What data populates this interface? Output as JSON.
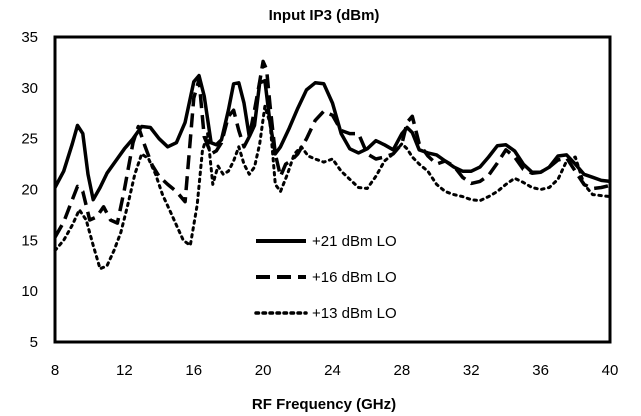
{
  "chart_data": {
    "type": "line",
    "title": "Input IP3 (dBm)",
    "xlabel": "RF Frequency (GHz)",
    "ylabel": "",
    "xlim": [
      8,
      40
    ],
    "ylim": [
      5,
      35
    ],
    "xticks": [
      8,
      12,
      16,
      20,
      24,
      28,
      32,
      36,
      40
    ],
    "yticks": [
      5,
      10,
      15,
      20,
      25,
      30,
      35
    ],
    "grid": false,
    "legend_position": "center",
    "series": [
      {
        "name": "+21 dBm LO",
        "style": "solid",
        "x": [
          8,
          8.5,
          9,
          9.3,
          9.6,
          9.9,
          10.2,
          10.6,
          11,
          11.5,
          12,
          12.5,
          13,
          13.5,
          14,
          14.5,
          15,
          15.5,
          16,
          16.3,
          16.6,
          17,
          17.3,
          17.6,
          18,
          18.3,
          18.6,
          18.9,
          19.2,
          19.5,
          19.8,
          20.1,
          20.4,
          20.7,
          21,
          21.5,
          22,
          22.5,
          23,
          23.5,
          24,
          24.5,
          25,
          25.5,
          26,
          26.5,
          27,
          27.5,
          28,
          28.3,
          28.6,
          29,
          29.5,
          30,
          30.5,
          31,
          31.5,
          32,
          32.5,
          33,
          33.5,
          34,
          34.5,
          35,
          35.5,
          36,
          36.5,
          37,
          37.5,
          38,
          38.5,
          39,
          39.5,
          40
        ],
        "values": [
          20.2,
          21.8,
          24.5,
          26.3,
          25.5,
          21.5,
          19,
          20.2,
          21.6,
          22.8,
          24,
          25,
          26.2,
          26.1,
          25,
          24.2,
          24.6,
          26.6,
          30.6,
          31.2,
          29.2,
          24.6,
          24.4,
          24.9,
          27.8,
          30.4,
          30.5,
          28.5,
          25.2,
          26.3,
          30.5,
          30.7,
          26.5,
          23.5,
          24.2,
          26,
          28,
          29.8,
          30.5,
          30.4,
          28.5,
          25.5,
          24,
          23.6,
          24,
          24.8,
          24.4,
          23.9,
          25.5,
          26.1,
          25.6,
          23.9,
          23.6,
          23.4,
          22.8,
          22.2,
          21.8,
          21.8,
          22.2,
          23.2,
          24.3,
          24.4,
          23.8,
          22.5,
          21.7,
          21.7,
          22.2,
          23.3,
          23.4,
          22.5,
          21.5,
          21.2,
          20.9,
          20.8
        ]
      },
      {
        "name": "+16 dBm LO",
        "style": "dashed",
        "x": [
          8,
          8.5,
          9,
          9.3,
          9.6,
          10,
          10.4,
          10.8,
          11.2,
          11.6,
          12,
          12.5,
          12.8,
          13.2,
          13.6,
          14,
          14.5,
          15,
          15.5,
          16,
          16.3,
          16.6,
          17,
          17.3,
          17.6,
          18,
          18.3,
          18.6,
          18.9,
          19.2,
          19.5,
          19.8,
          20,
          20.2,
          20.4,
          20.7,
          21,
          21.3,
          21.6,
          22,
          22.5,
          23,
          23.5,
          24,
          24.5,
          25,
          25.5,
          26,
          26.5,
          27,
          27.5,
          28,
          28.3,
          28.6,
          29,
          29.5,
          30,
          30.5,
          31,
          31.5,
          32,
          32.5,
          33,
          33.5,
          34,
          34.5,
          35,
          35.5,
          36,
          36.5,
          37,
          37.5,
          38,
          38.5,
          39,
          39.5,
          40
        ],
        "values": [
          15.3,
          16.8,
          19,
          20.3,
          19.8,
          17,
          17.3,
          18.3,
          17,
          16.7,
          20,
          24.6,
          26.2,
          24.2,
          22.4,
          21.3,
          20.5,
          19.8,
          18.8,
          29,
          30.8,
          25.2,
          23.5,
          23.8,
          24.6,
          27.2,
          27.8,
          25.8,
          24.2,
          25.2,
          27.8,
          30.6,
          32.6,
          31.8,
          28.2,
          23.5,
          21.3,
          22.5,
          22.8,
          23.5,
          25,
          26.8,
          27.7,
          27.3,
          25.8,
          25.5,
          25.5,
          23.5,
          23,
          23.2,
          23.5,
          24.5,
          26.6,
          27.2,
          24.5,
          23.3,
          22.5,
          22.8,
          22.3,
          21.2,
          20.6,
          20.8,
          21.4,
          22.6,
          23.9,
          23.2,
          22,
          21.6,
          21.7,
          22.2,
          22.9,
          23.1,
          21.8,
          20.5,
          20.1,
          20.2,
          20.4
        ]
      },
      {
        "name": "+13 dBm LO",
        "style": "dotted",
        "x": [
          8,
          8.5,
          9,
          9.4,
          9.8,
          10.2,
          10.6,
          11,
          11.4,
          11.8,
          12.2,
          12.6,
          13,
          13.4,
          13.8,
          14.2,
          14.6,
          15,
          15.4,
          15.8,
          16.2,
          16.5,
          16.8,
          17.1,
          17.4,
          17.7,
          18,
          18.3,
          18.6,
          18.9,
          19.2,
          19.5,
          19.8,
          20.1,
          20.4,
          20.7,
          21,
          21.4,
          21.8,
          22.2,
          22.6,
          23,
          23.5,
          24,
          24.5,
          25,
          25.5,
          26,
          26.5,
          27,
          27.5,
          28,
          28.3,
          28.6,
          29,
          29.5,
          30,
          30.5,
          31,
          31.5,
          32,
          32.5,
          33,
          33.5,
          34,
          34.5,
          35,
          35.5,
          36,
          36.5,
          37,
          37.5,
          38,
          38.5,
          39,
          39.5,
          40
        ],
        "values": [
          14,
          15,
          16.5,
          18,
          17,
          14.5,
          12.2,
          12.5,
          14,
          15.8,
          18.5,
          21.5,
          23.5,
          23,
          21.5,
          19.5,
          18,
          16.5,
          15,
          14.5,
          18.5,
          23.8,
          25.5,
          20.5,
          22.3,
          21.5,
          21.8,
          22.8,
          24.2,
          22.5,
          21.5,
          22.2,
          24.5,
          28.2,
          26.5,
          20.5,
          19.8,
          21.5,
          23.5,
          24.2,
          23.3,
          23,
          22.7,
          23,
          21.8,
          21,
          20.2,
          20.1,
          21.3,
          22.8,
          23.5,
          24.5,
          24,
          23.2,
          22.5,
          21.8,
          20.5,
          19.8,
          19.5,
          19.3,
          19,
          18.9,
          19.3,
          19.8,
          20.5,
          21.1,
          20.7,
          20.2,
          20,
          20.2,
          21,
          22.8,
          23.2,
          20.5,
          19.5,
          19.4,
          19.3
        ]
      }
    ]
  }
}
